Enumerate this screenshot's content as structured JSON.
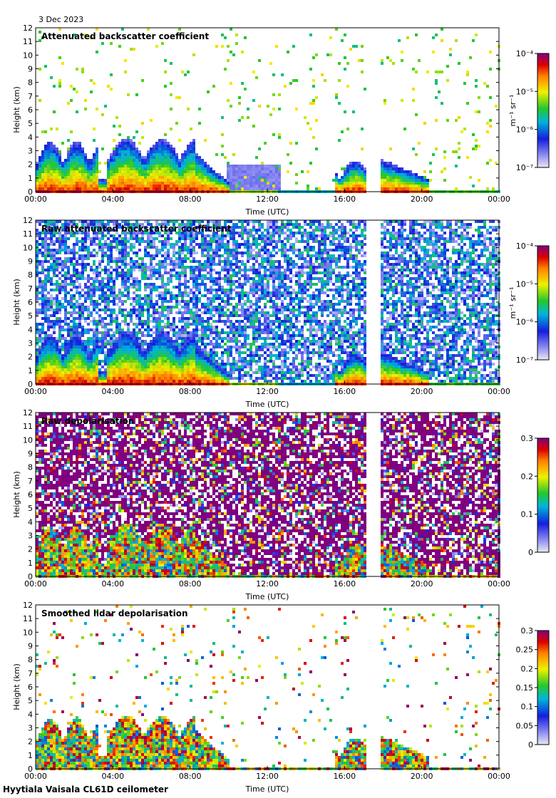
{
  "header": {
    "date": "3 Dec 2023",
    "site": "Hyytiala Vaisala CL61D ceilometer"
  },
  "chart_data": [
    {
      "type": "heatmap",
      "title": "Attenuated backscatter coefficient",
      "xlabel": "Time (UTC)",
      "ylabel": "Height (km)",
      "x_ticks": [
        "00:00",
        "04:00",
        "08:00",
        "12:00",
        "16:00",
        "20:00",
        "00:00"
      ],
      "y_ticks": [
        "0",
        "1",
        "2",
        "3",
        "4",
        "5",
        "6",
        "7",
        "8",
        "9",
        "10",
        "11",
        "12"
      ],
      "ylim": [
        0,
        12
      ],
      "xlim_hours": [
        0,
        24
      ],
      "data_gap_hours": [
        17.0,
        17.8
      ],
      "colorbar": {
        "scale": "log",
        "range": [
          1e-07,
          0.0001
        ],
        "ticks": [
          "10⁻⁴",
          "10⁻⁵",
          "10⁻⁶",
          "10⁻⁷"
        ],
        "unit": "m⁻¹ sr⁻¹"
      }
    },
    {
      "type": "heatmap",
      "title": "Raw attenuated backscatter coefficient",
      "xlabel": "Time (UTC)",
      "ylabel": "Height (km)",
      "x_ticks": [
        "00:00",
        "04:00",
        "08:00",
        "12:00",
        "16:00",
        "20:00",
        "00:00"
      ],
      "y_ticks": [
        "0",
        "1",
        "2",
        "3",
        "4",
        "5",
        "6",
        "7",
        "8",
        "9",
        "10",
        "11",
        "12"
      ],
      "ylim": [
        0,
        12
      ],
      "xlim_hours": [
        0,
        24
      ],
      "data_gap_hours": [
        17.0,
        17.8
      ],
      "colorbar": {
        "scale": "log",
        "range": [
          1e-07,
          0.0001
        ],
        "ticks": [
          "10⁻⁴",
          "10⁻⁵",
          "10⁻⁶",
          "10⁻⁷"
        ],
        "unit": "m⁻¹ sr⁻¹"
      }
    },
    {
      "type": "heatmap",
      "title": "Raw depolarisation",
      "xlabel": "Time (UTC)",
      "ylabel": "Height (km)",
      "x_ticks": [
        "00:00",
        "04:00",
        "08:00",
        "12:00",
        "16:00",
        "20:00",
        "00:00"
      ],
      "y_ticks": [
        "0",
        "1",
        "2",
        "3",
        "4",
        "5",
        "6",
        "7",
        "8",
        "9",
        "10",
        "11",
        "12"
      ],
      "ylim": [
        0,
        12
      ],
      "xlim_hours": [
        0,
        24
      ],
      "data_gap_hours": [
        17.0,
        17.8
      ],
      "colorbar": {
        "scale": "linear",
        "range": [
          0,
          0.3
        ],
        "ticks": [
          "0.3",
          "0.2",
          "0.1",
          "0"
        ],
        "unit": ""
      }
    },
    {
      "type": "heatmap",
      "title": "Smoothed lidar depolarisation",
      "xlabel": "Time (UTC)",
      "ylabel": "Height (km)",
      "x_ticks": [
        "00:00",
        "04:00",
        "08:00",
        "12:00",
        "16:00",
        "20:00",
        "00:00"
      ],
      "y_ticks": [
        "0",
        "1",
        "2",
        "3",
        "4",
        "5",
        "6",
        "7",
        "8",
        "9",
        "10",
        "11",
        "12"
      ],
      "ylim": [
        0,
        12
      ],
      "xlim_hours": [
        0,
        24
      ],
      "data_gap_hours": [
        17.0,
        17.8
      ],
      "colorbar": {
        "scale": "linear",
        "range": [
          0,
          0.3
        ],
        "ticks": [
          "0.3",
          "0.25",
          "0.2",
          "0.15",
          "0.1",
          "0.05",
          "0"
        ],
        "unit": ""
      }
    }
  ]
}
